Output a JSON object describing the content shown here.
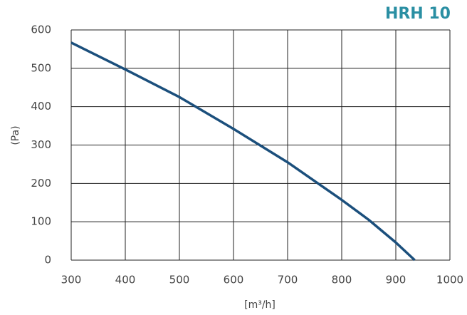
{
  "chart_data": {
    "type": "line",
    "title": "HRH 10",
    "xlabel": "[m³/h]",
    "ylabel": "(Pa)",
    "x": [
      300,
      400,
      500,
      600,
      700,
      800,
      850,
      900,
      935
    ],
    "series": [
      {
        "color": "#1b4f7c",
        "values": [
          567,
          497,
          425,
          342,
          255,
          157,
          105,
          46,
          0
        ]
      }
    ],
    "xlim": [
      300,
      1000
    ],
    "xticks": [
      300,
      400,
      500,
      600,
      700,
      800,
      900,
      1000
    ],
    "ylim": [
      0,
      600
    ],
    "yticks": [
      0,
      100,
      200,
      300,
      400,
      500,
      600
    ],
    "grid": true,
    "title_color": "#2a8fa3"
  }
}
